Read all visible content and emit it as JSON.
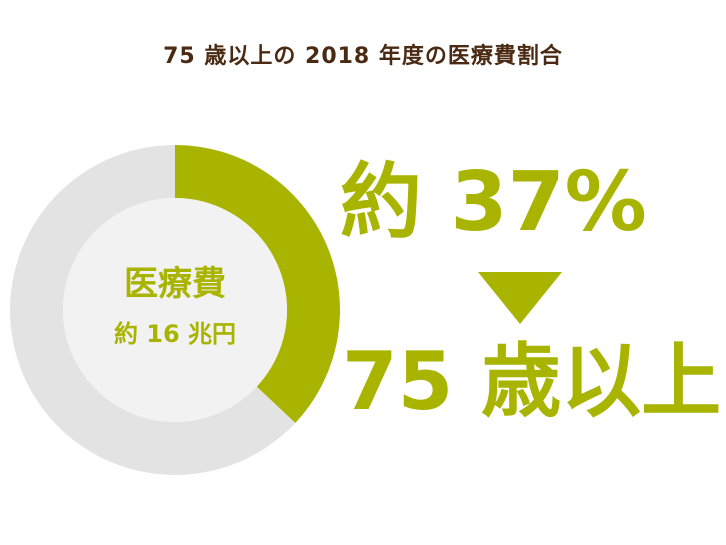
{
  "title": "75 歳以上の 2018 年度の医療費割合",
  "colors": {
    "title": "#4a2a12",
    "accent": "#a8b400",
    "remainder": "#e3e3e3",
    "hole": "#f2f2f2"
  },
  "center_label": {
    "line1": "医療費",
    "line2": "約 16 兆円"
  },
  "highlight": {
    "percent_text": "約 37%",
    "group_text": "75 歳以上"
  },
  "chart_data": {
    "type": "pie",
    "title": "75 歳以上の 2018 年度の医療費割合",
    "variant": "donut",
    "slices": [
      {
        "label": "75 歳以上",
        "value": 37
      },
      {
        "label": "",
        "value": 63
      }
    ],
    "total_label": "約 16 兆円"
  }
}
